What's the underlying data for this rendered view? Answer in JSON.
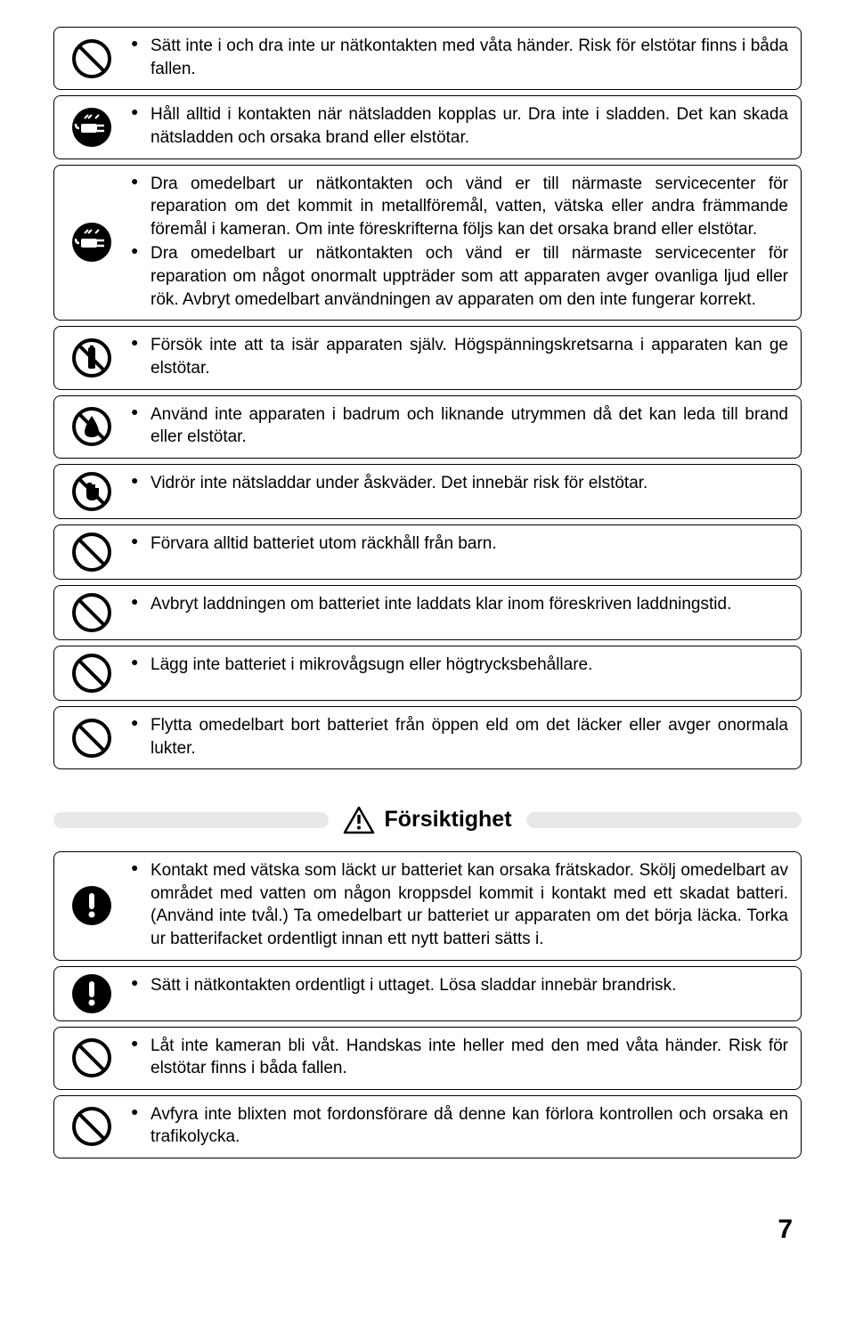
{
  "pageNumber": "7",
  "sectionTitle": "Försiktighet",
  "rows1": [
    {
      "icon": "prohibit",
      "items": [
        "Sätt inte i och dra inte ur nätkontakten med våta händer. Risk för elstötar finns i båda fallen."
      ]
    },
    {
      "icon": "plug",
      "items": [
        "Håll alltid i kontakten när nätsladden kopplas ur. Dra inte i sladden. Det kan skada nätsladden och orsaka brand eller elstötar."
      ]
    },
    {
      "icon": "plug",
      "items": [
        "Dra omedelbart ur nätkontakten och vänd er till närmaste servicecenter för reparation om det kommit in metallföremål, vatten, vätska eller andra främmande föremål i kameran. Om inte föreskrifterna följs kan det orsaka brand eller elstötar.",
        "Dra omedelbart ur nätkontakten och vänd er till närmaste servicecenter för reparation om något onormalt uppträder som att apparaten avger ovanliga ljud eller rök. Avbryt omedelbart användningen av apparaten om den inte fungerar korrekt."
      ]
    },
    {
      "icon": "disassemble",
      "items": [
        "Försök inte att ta isär apparaten själv. Högspänningskretsarna i apparaten kan ge elstötar."
      ]
    },
    {
      "icon": "nowet",
      "items": [
        "Använd inte apparaten i badrum och liknande utrymmen då det kan leda till brand eller elstötar."
      ]
    },
    {
      "icon": "notouch",
      "items": [
        "Vidrör inte nätsladdar under åskväder. Det innebär risk för elstötar."
      ]
    },
    {
      "icon": "prohibit",
      "items": [
        "Förvara alltid batteriet utom räckhåll från barn."
      ]
    },
    {
      "icon": "prohibit",
      "items": [
        "Avbryt laddningen om batteriet inte laddats klar inom föreskriven laddningstid."
      ]
    },
    {
      "icon": "prohibit",
      "items": [
        "Lägg inte batteriet i mikrovågsugn eller högtrycksbehållare."
      ]
    },
    {
      "icon": "prohibit",
      "items": [
        "Flytta omedelbart bort batteriet från öppen eld om det läcker eller avger onormala lukter."
      ]
    }
  ],
  "rows2": [
    {
      "icon": "exclaim",
      "items": [
        "Kontakt med vätska som läckt ur batteriet kan orsaka frätskador. Skölj omedelbart av området med vatten om någon kroppsdel kommit i kontakt med ett skadat batteri. (Använd inte tvål.) Ta omedelbart ur batteriet ur apparaten om det börja läcka. Torka ur batterifacket ordentligt innan ett nytt batteri sätts i."
      ]
    },
    {
      "icon": "exclaim",
      "items": [
        "Sätt i nätkontakten ordentligt i uttaget. Lösa sladdar innebär brandrisk."
      ]
    },
    {
      "icon": "prohibit",
      "items": [
        "Låt inte kameran bli våt. Handskas inte heller med den med våta händer. Risk för elstötar finns i båda fallen."
      ]
    },
    {
      "icon": "prohibit",
      "items": [
        "Avfyra inte blixten mot fordonsförare då denne kan förlora kontrollen och orsaka en trafikolycka."
      ]
    }
  ]
}
